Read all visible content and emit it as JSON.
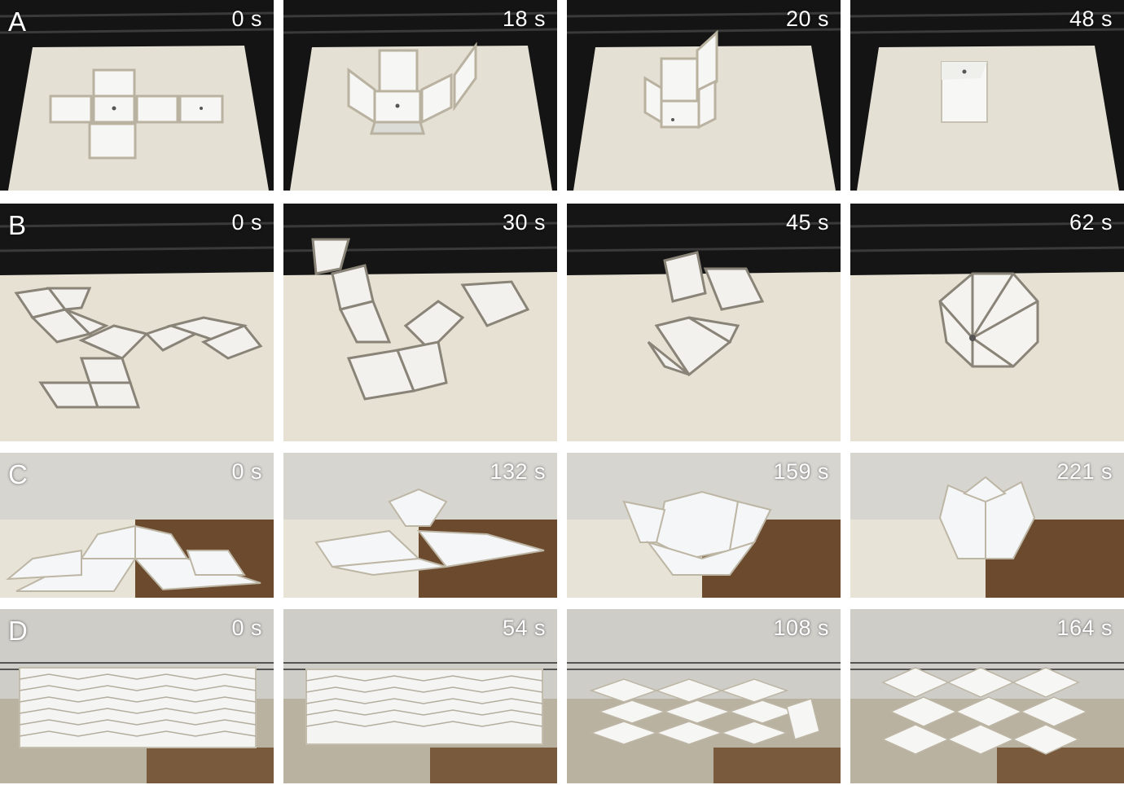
{
  "rows": [
    {
      "label": "A",
      "theme": "oven-cube",
      "frames": [
        "0 s",
        "18 s",
        "20 s",
        "48 s"
      ]
    },
    {
      "label": "B",
      "theme": "oven-icosahedron",
      "frames": [
        "0 s",
        "30 s",
        "45 s",
        "62 s"
      ]
    },
    {
      "label": "C",
      "theme": "oven-triangular-star",
      "frames": [
        "0 s",
        "132 s",
        "159 s",
        "221 s"
      ]
    },
    {
      "label": "D",
      "theme": "oven-chevron-lattice",
      "frames": [
        "0 s",
        "54 s",
        "108 s",
        "164 s"
      ]
    }
  ],
  "colors": {
    "oven_dark": "#141414",
    "board": "#e4e0d3",
    "panel_white": "#f6f6f4",
    "steel_edge": "#8a8478",
    "rust": "#6b4a2e"
  }
}
